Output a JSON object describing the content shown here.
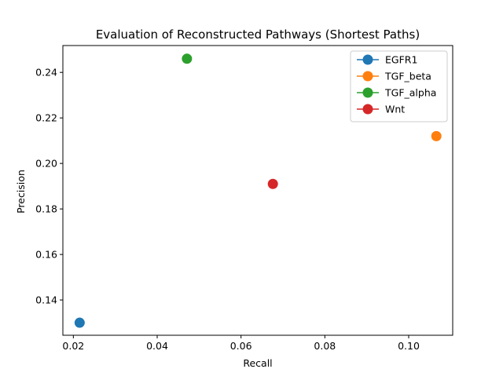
{
  "chart_data": {
    "type": "scatter",
    "title": "Evaluation of Reconstructed Pathways (Shortest Paths)",
    "xlabel": "Recall",
    "ylabel": "Precision",
    "xlim": [
      0.0175,
      0.1105
    ],
    "ylim": [
      0.1245,
      0.2518
    ],
    "xticks": [
      "0.02",
      "0.04",
      "0.06",
      "0.08",
      "0.10"
    ],
    "yticks": [
      "0.14",
      "0.16",
      "0.18",
      "0.20",
      "0.22",
      "0.24"
    ],
    "grid": false,
    "legend_position": "top-right",
    "series": [
      {
        "name": "EGFR1",
        "color": "#1f77b4",
        "x": 0.0215,
        "y": 0.13
      },
      {
        "name": "TGF_beta",
        "color": "#ff7f0e",
        "x": 0.1066,
        "y": 0.212
      },
      {
        "name": "TGF_alpha",
        "color": "#2ca02c",
        "x": 0.0471,
        "y": 0.246
      },
      {
        "name": "Wnt",
        "color": "#d62728",
        "x": 0.0676,
        "y": 0.191
      }
    ]
  }
}
